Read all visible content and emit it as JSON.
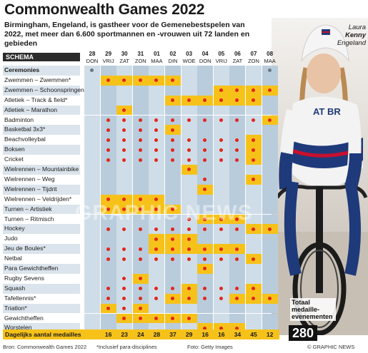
{
  "title": "Commonwealth Games 2022",
  "intro": "Birmingham, Engeland, is gastheer voor de Gemenebestspelen van 2022, met meer dan 6.600 sportmannen en -vrouwen uit 72 landen en gebieden",
  "caption": {
    "name_first": "Laura",
    "name_last": "Kenny",
    "country": "Engeland"
  },
  "schedule_label": "SCHEMA",
  "days": [
    {
      "d": "28",
      "w": "DON"
    },
    {
      "d": "29",
      "w": "VRIJ"
    },
    {
      "d": "30",
      "w": "ZAT"
    },
    {
      "d": "31",
      "w": "ZON"
    },
    {
      "d": "01",
      "w": "MAA"
    },
    {
      "d": "02",
      "w": "DIN"
    },
    {
      "d": "03",
      "w": "WOE"
    },
    {
      "d": "04",
      "w": "DON"
    },
    {
      "d": "05",
      "w": "VRIJ"
    },
    {
      "d": "06",
      "w": "ZAT"
    },
    {
      "d": "07",
      "w": "ZON"
    },
    {
      "d": "08",
      "w": "MAA"
    }
  ],
  "sports": [
    {
      "name": "Ceremonies",
      "bold": true,
      "ceremony": [
        0,
        11
      ],
      "on": [],
      "medal": []
    },
    {
      "name": "Zwemmen – Zwemmen*",
      "on": [
        1,
        2,
        3,
        4,
        5
      ],
      "medal": [
        1,
        2,
        3,
        4,
        5
      ]
    },
    {
      "name": "Zwemmen – Schoonspringen",
      "on": [
        8,
        9,
        10,
        11
      ],
      "medal": [
        8,
        9,
        10,
        11
      ]
    },
    {
      "name": "Atletiek – Track & field*",
      "on": [
        5,
        6,
        7,
        8,
        9,
        10
      ],
      "medal": [
        5,
        6,
        7,
        8,
        9,
        10
      ]
    },
    {
      "name": "Atletiek – Marathon",
      "on": [
        2
      ],
      "medal": [
        2
      ]
    },
    {
      "name": "Badminton",
      "on": [
        11
      ],
      "medal": [
        11
      ],
      "play": [
        1,
        2,
        3,
        4,
        5,
        6,
        7,
        8,
        9,
        10
      ]
    },
    {
      "name": "Basketbal 3x3*",
      "on": [
        5
      ],
      "medal": [
        5
      ],
      "play": [
        1,
        2,
        3,
        4
      ]
    },
    {
      "name": "Beachvolleybal",
      "on": [
        10
      ],
      "medal": [
        10
      ],
      "play": [
        1,
        2,
        3,
        4,
        5,
        6,
        7,
        8,
        9
      ]
    },
    {
      "name": "Boksen",
      "on": [
        10
      ],
      "medal": [
        10
      ],
      "play": [
        1,
        2,
        3,
        4,
        5,
        6,
        7,
        8,
        9
      ]
    },
    {
      "name": "Cricket",
      "on": [
        10
      ],
      "medal": [
        10
      ],
      "play": [
        1,
        2,
        3,
        4,
        5,
        6,
        7,
        8,
        9
      ]
    },
    {
      "name": "Wielrennen – Mountainbike",
      "on": [
        6
      ],
      "medal": [
        6
      ]
    },
    {
      "name": "Wielrennen – Weg",
      "on": [
        10
      ],
      "medal": [
        10
      ],
      "play": [
        7
      ]
    },
    {
      "name": "Wielrennen – Tijdrit",
      "on": [
        7
      ],
      "medal": [
        7
      ]
    },
    {
      "name": "Wielrennen – Veldrijden*",
      "on": [
        1,
        2,
        3,
        4
      ],
      "medal": [
        1,
        2,
        3,
        4
      ]
    },
    {
      "name": "Turnen – Artistiek",
      "on": [
        1,
        2,
        3,
        4,
        5
      ],
      "medal": [
        2,
        3,
        4,
        5
      ],
      "play": [
        1
      ]
    },
    {
      "name": "Turnen – Ritmisch",
      "on": [
        7,
        8,
        9
      ],
      "medal": [
        7,
        8,
        9
      ],
      "play": [
        6
      ]
    },
    {
      "name": "Hockey",
      "on": [
        10,
        11
      ],
      "medal": [
        10,
        11
      ],
      "play": [
        1,
        2,
        3,
        4,
        5,
        6,
        7,
        8,
        9
      ]
    },
    {
      "name": "Judo",
      "on": [
        4,
        5,
        6
      ],
      "medal": [
        4,
        5,
        6
      ]
    },
    {
      "name": "Jeu de Boules*",
      "on": [
        4,
        5,
        6,
        7,
        8,
        9
      ],
      "medal": [
        4,
        5,
        6,
        7,
        8,
        9
      ],
      "play": [
        1,
        2,
        3
      ]
    },
    {
      "name": "Netbal",
      "on": [
        10
      ],
      "medal": [
        10
      ],
      "play": [
        1,
        2,
        3,
        4,
        5,
        6,
        7,
        8,
        9
      ]
    },
    {
      "name": "Para Gewichtheffen",
      "on": [
        7
      ],
      "medal": [
        7
      ]
    },
    {
      "name": "Rugby Sevens",
      "on": [
        3
      ],
      "medal": [
        3
      ],
      "play": [
        2
      ]
    },
    {
      "name": "Squash",
      "on": [
        6,
        10
      ],
      "medal": [
        6,
        10
      ],
      "play": [
        1,
        2,
        3,
        4,
        5,
        7,
        8,
        9
      ]
    },
    {
      "name": "Tafeltennis*",
      "on": [
        5,
        6,
        9,
        10,
        11
      ],
      "medal": [
        5,
        6,
        9,
        10,
        11
      ],
      "play": [
        1,
        2,
        3,
        4,
        7,
        8
      ]
    },
    {
      "name": "Triatlon*",
      "on": [
        1,
        3
      ],
      "medal": [
        1,
        3
      ],
      "play": [
        2
      ]
    },
    {
      "name": "Gewichtheffen",
      "on": [
        2,
        3,
        4,
        5,
        6
      ],
      "medal": [
        2,
        3,
        4,
        5,
        6
      ]
    },
    {
      "name": "Worstelen",
      "on": [
        7,
        8,
        9
      ],
      "medal": [
        7,
        8,
        9
      ]
    }
  ],
  "daily_label": "Dagelijks aantal medailles",
  "daily_medals": [
    "",
    "16",
    "23",
    "24",
    "28",
    "37",
    "29",
    "16",
    "16",
    "34",
    "45",
    "12"
  ],
  "total_label": "Totaal medaille-evenementen",
  "total": "280",
  "footer": {
    "source": "Bron: Commonwealth Games 2022",
    "note": "*Inclusief para-disciplines",
    "photo": "Foto: Getty Images",
    "credit": "© GRAPHIC NEWS"
  },
  "watermark": "GRAPHIC NEWS",
  "colors": {
    "highlight": "#f6c21a",
    "medal_dot": "#e3261b",
    "grid_light": "#cfdde8",
    "grid_dark": "#b9ccdc"
  }
}
